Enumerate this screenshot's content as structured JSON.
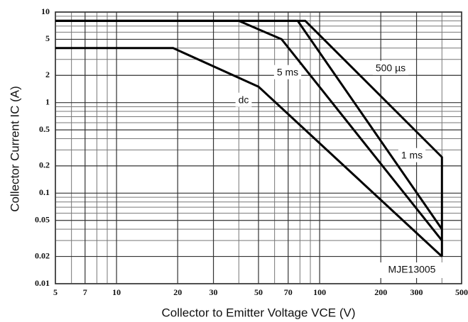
{
  "chart_data": {
    "type": "line",
    "xlabel": "Collector to Emitter Voltage  VCE  (V)",
    "ylabel": "Collector Current  IC  (A)",
    "annotation": "MJE13005",
    "log_x": true,
    "log_y": true,
    "grid": true,
    "xlim": [
      5,
      500
    ],
    "ylim": [
      0.01,
      10
    ],
    "xticks": [
      5,
      7,
      10,
      20,
      30,
      50,
      70,
      100,
      200,
      300,
      500
    ],
    "xminorticks": [
      6,
      8,
      9,
      40,
      60,
      80,
      90,
      400
    ],
    "yticks": [
      0.01,
      0.02,
      0.05,
      0.1,
      0.2,
      0.5,
      1,
      2,
      5,
      10
    ],
    "yminorticks": [
      0.03,
      0.04,
      0.06,
      0.07,
      0.08,
      0.09,
      0.3,
      0.4,
      0.6,
      0.7,
      0.8,
      0.9,
      3,
      4,
      6,
      7,
      8,
      9
    ],
    "series": [
      {
        "name": "dc",
        "color": "#000000",
        "x": [
          5,
          19,
          50,
          400
        ],
        "values": [
          4,
          4,
          1.5,
          0.02
        ]
      },
      {
        "name": "5 ms",
        "color": "#000000",
        "x": [
          5,
          40,
          65,
          400
        ],
        "values": [
          8,
          8,
          5,
          0.03
        ]
      },
      {
        "name": "1 ms",
        "color": "#000000",
        "x": [
          5,
          78,
          400
        ],
        "values": [
          8,
          8,
          0.04
        ]
      },
      {
        "name": "500 µs",
        "color": "#000000",
        "x": [
          5,
          85,
          400,
          400
        ],
        "values": [
          8,
          8,
          0.25,
          0.02
        ]
      }
    ]
  }
}
